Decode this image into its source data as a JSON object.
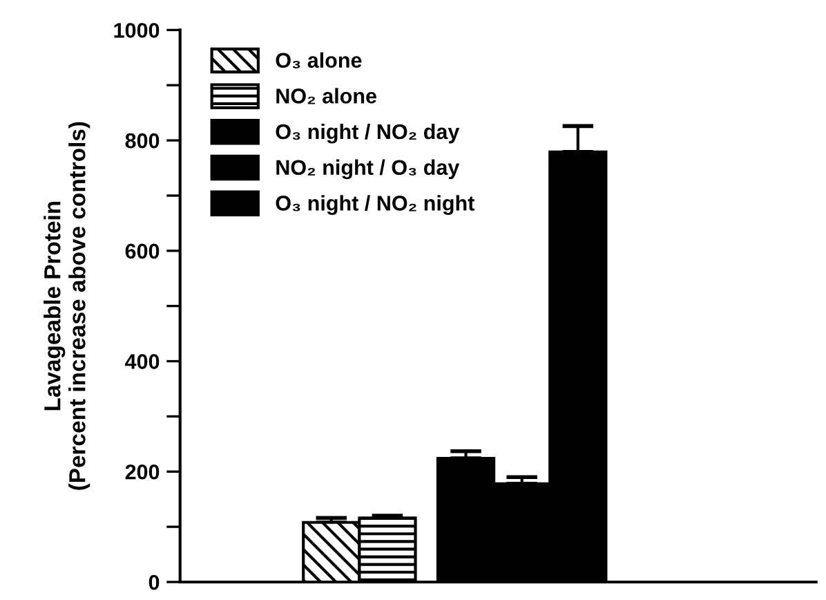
{
  "chart_data": {
    "type": "bar",
    "ylabel": "Lavageable Protein\n(Percent increase above controls)",
    "categories": [
      null
    ],
    "series": [
      {
        "name": "O₃ alone",
        "color": "#000000",
        "values": [
          108
        ],
        "errors": [
          [
            108,
            116
          ]
        ]
      },
      {
        "name": "NO₂ alone",
        "color": "#000000",
        "values": [
          116
        ],
        "errors": [
          [
            116,
            120
          ]
        ]
      },
      {
        "name": "O₃ night / NO₂ day",
        "color": "#000000",
        "values": [
          224
        ],
        "errors": [
          [
            224,
            237
          ]
        ]
      },
      {
        "name": "NO₂ night / O₃ day",
        "color": "#000000",
        "values": [
          178
        ],
        "errors": [
          [
            178,
            190
          ]
        ]
      },
      {
        "name": "O₃ night / NO₂ night",
        "color": "#000000",
        "values": [
          779
        ],
        "errors": [
          [
            779,
            826
          ]
        ]
      }
    ],
    "ylim": [
      0,
      1000
    ],
    "yticks": [
      0,
      {
        "value": 100,
        "label": null
      },
      200,
      {
        "value": 300,
        "label": null
      },
      400,
      {
        "value": 500,
        "label": null
      },
      600,
      {
        "value": 700,
        "label": null
      },
      800,
      {
        "value": 900,
        "label": null
      },
      1000
    ],
    "grid": false,
    "legend": "top left"
  }
}
